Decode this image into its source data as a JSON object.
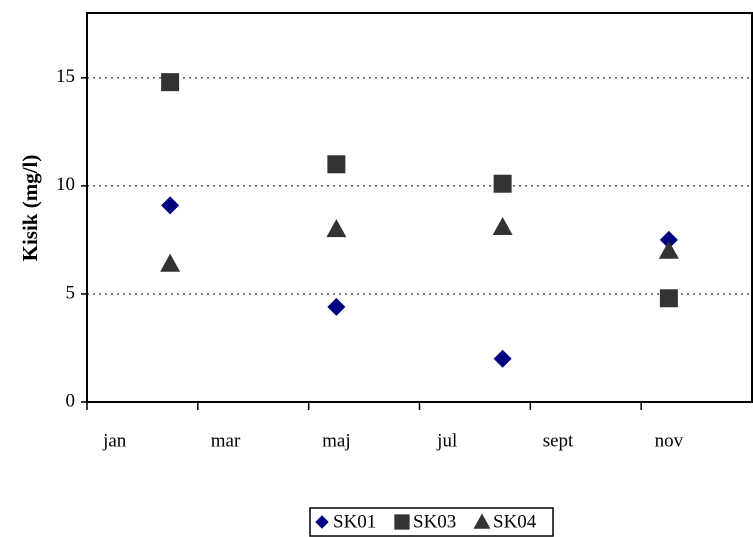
{
  "chart_data": {
    "type": "line",
    "show_lines": false,
    "y_label": "Kisik (mg/l)",
    "categories": [
      "jan",
      null,
      "mar",
      null,
      "maj",
      null,
      "jul",
      null,
      "sept",
      null,
      "nov",
      null
    ],
    "series": [
      {
        "name": "SK01",
        "color": "#000080",
        "marker": "diamond",
        "values": [
          null,
          9.1,
          null,
          null,
          4.4,
          null,
          null,
          2.0,
          null,
          null,
          7.5,
          null
        ]
      },
      {
        "name": "SK03",
        "color": "#333333",
        "marker": "square",
        "values": [
          null,
          14.8,
          null,
          null,
          11.0,
          null,
          null,
          10.1,
          null,
          null,
          4.8,
          null
        ]
      },
      {
        "name": "SK04",
        "color": "#333333",
        "marker": "triangle",
        "values": [
          null,
          6.4,
          null,
          null,
          8.0,
          null,
          null,
          8.1,
          null,
          null,
          7.0,
          null
        ]
      }
    ],
    "ylim": [
      0,
      18
    ],
    "yticks": [
      0,
      5,
      10,
      15
    ],
    "grid": true,
    "legend": "bottom"
  }
}
